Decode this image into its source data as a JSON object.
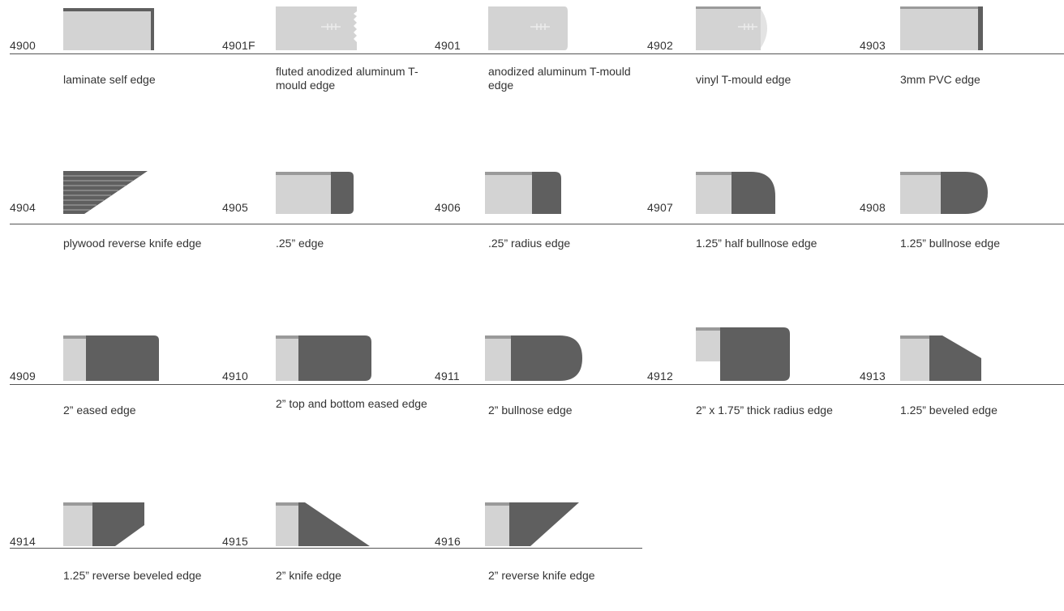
{
  "colors": {
    "light": "#d3d3d3",
    "dark": "#5f5f5f",
    "strip": "#9a9a9a",
    "line": "#555555"
  },
  "rows": [
    {
      "items": [
        {
          "code": "4900",
          "caption": "laminate self edge",
          "icon": "laminate-self-edge-icon",
          "shape": "s4900"
        },
        {
          "code": "4901F",
          "caption": "fluted anodized aluminum T-mould edge",
          "icon": "fluted-aluminum-t-mould-icon",
          "shape": "s4901F"
        },
        {
          "code": "4901",
          "caption": "anodized aluminum T-mould edge",
          "icon": "aluminum-t-mould-icon",
          "shape": "s4901"
        },
        {
          "code": "4902",
          "caption": "vinyl T-mould edge",
          "icon": "vinyl-t-mould-icon",
          "shape": "s4902"
        },
        {
          "code": "4903",
          "caption": "3mm PVC edge",
          "icon": "pvc-edge-icon",
          "shape": "s4903"
        }
      ]
    },
    {
      "items": [
        {
          "code": "4904",
          "caption": "plywood reverse knife edge",
          "icon": "plywood-reverse-knife-icon",
          "shape": "s4904"
        },
        {
          "code": "4905",
          "caption": ".25” edge",
          "icon": "quarter-inch-edge-icon",
          "shape": "s4905"
        },
        {
          "code": "4906",
          "caption": ".25” radius edge",
          "icon": "quarter-inch-radius-icon",
          "shape": "s4906"
        },
        {
          "code": "4907",
          "caption": "1.25” half bullnose edge",
          "icon": "half-bullnose-icon",
          "shape": "s4907"
        },
        {
          "code": "4908",
          "caption": "1.25” bullnose edge",
          "icon": "bullnose-icon",
          "shape": "s4908"
        }
      ]
    },
    {
      "items": [
        {
          "code": "4909",
          "caption": "2” eased edge",
          "icon": "eased-edge-icon",
          "shape": "s4909"
        },
        {
          "code": "4910",
          "caption": "2” top and bottom eased edge",
          "icon": "top-bottom-eased-icon",
          "shape": "s4910"
        },
        {
          "code": "4911",
          "caption": "2” bullnose edge",
          "icon": "two-inch-bullnose-icon",
          "shape": "s4911"
        },
        {
          "code": "4912",
          "caption": "2” x 1.75” thick radius edge",
          "icon": "thick-radius-icon",
          "shape": "s4912"
        },
        {
          "code": "4913",
          "caption": "1.25” beveled edge",
          "icon": "beveled-edge-icon",
          "shape": "s4913"
        }
      ]
    },
    {
      "items": [
        {
          "code": "4914",
          "caption": "1.25” reverse beveled edge",
          "icon": "reverse-beveled-icon",
          "shape": "s4914"
        },
        {
          "code": "4915",
          "caption": "2” knife edge",
          "icon": "knife-edge-icon",
          "shape": "s4915"
        },
        {
          "code": "4916",
          "caption": "2” reverse knife edge",
          "icon": "reverse-knife-icon",
          "shape": "s4916"
        }
      ]
    }
  ]
}
